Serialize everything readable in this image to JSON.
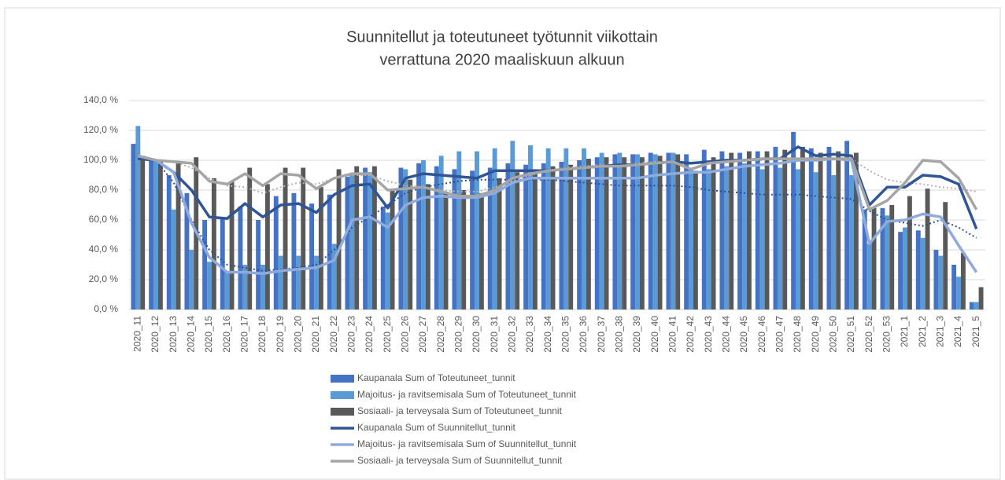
{
  "chart_data": {
    "type": "bar-line",
    "title": [
      "Suunnitellut ja toteutuneet työtunnit viikottain",
      "verrattuna 2020 maaliskuun alkuun"
    ],
    "categories": [
      "2020_11",
      "2020_12",
      "2020_13",
      "2020_14",
      "2020_15",
      "2020_16",
      "2020_17",
      "2020_18",
      "2020_19",
      "2020_20",
      "2020_21",
      "2020_22",
      "2020_23",
      "2020_24",
      "2020_25",
      "2020_26",
      "2020_27",
      "2020_28",
      "2020_29",
      "2020_30",
      "2020_31",
      "2020_32",
      "2020_33",
      "2020_34",
      "2020_35",
      "2020_36",
      "2020_37",
      "2020_38",
      "2020_39",
      "2020_40",
      "2020_41",
      "2020_42",
      "2020_43",
      "2020_44",
      "2020_45",
      "2020_46",
      "2020_47",
      "2020_48",
      "2020_49",
      "2020_50",
      "2020_51",
      "2020_52",
      "2020_53",
      "2021_1",
      "2021_2",
      "2021_3",
      "2021_4",
      "2021_5"
    ],
    "ylim": [
      0,
      140
    ],
    "yticks": [
      {
        "value": 0,
        "label": "0,0 %"
      },
      {
        "value": 20,
        "label": "20,0 %"
      },
      {
        "value": 40,
        "label": "40,0 %"
      },
      {
        "value": 60,
        "label": "60,0 %"
      },
      {
        "value": 80,
        "label": "80,0 %"
      },
      {
        "value": 100,
        "label": "100,0 %"
      },
      {
        "value": 120,
        "label": "120,0 %"
      },
      {
        "value": 140,
        "label": "140,0 %"
      }
    ],
    "grid": true,
    "series": [
      {
        "name": "Kaupanala Sum of Toteutuneet_tunnit",
        "kind": "bar",
        "color": "#4472c4",
        "values": [
          111,
          100,
          90,
          78,
          60,
          62,
          69,
          60,
          76,
          78,
          71,
          77,
          89,
          95,
          69,
          95,
          98,
          96,
          94,
          93,
          95,
          98,
          97,
          98,
          99,
          100,
          102,
          104,
          104,
          105,
          105,
          104,
          107,
          106,
          105,
          106,
          109,
          119,
          108,
          109,
          113,
          67,
          68,
          52,
          53,
          40,
          30,
          5
        ]
      },
      {
        "name": "Majoitus- ja ravitsemisala Sum of Toteutuneet_tunnit",
        "kind": "bar",
        "color": "#5b9bd5",
        "values": [
          123,
          100,
          67,
          40,
          32,
          25,
          30,
          30,
          36,
          36,
          36,
          44,
          90,
          92,
          65,
          94,
          100,
          103,
          106,
          106,
          108,
          113,
          110,
          108,
          108,
          108,
          105,
          105,
          104,
          104,
          105,
          95,
          94,
          96,
          98,
          94,
          95,
          94,
          92,
          90,
          90,
          44,
          63,
          55,
          48,
          36,
          22,
          5
        ]
      },
      {
        "name": "Sosiaali- ja terveysala Sum of Toteutuneet_tunnit",
        "kind": "bar",
        "color": "#595959",
        "values": [
          103,
          100,
          98,
          102,
          88,
          86,
          95,
          84,
          95,
          95,
          82,
          94,
          96,
          96,
          80,
          87,
          84,
          79,
          80,
          78,
          88,
          92,
          94,
          96,
          97,
          101,
          102,
          102,
          102,
          103,
          104,
          93,
          102,
          105,
          106,
          106,
          107,
          109,
          105,
          106,
          105,
          68,
          70,
          76,
          81,
          72,
          38,
          15
        ]
      },
      {
        "name": "Kaupanala Sum of Suunnitellut_tunnit",
        "kind": "line",
        "color": "#2f5597",
        "values": [
          101,
          100,
          92,
          80,
          62,
          61,
          71,
          62,
          70,
          71,
          65,
          77,
          83,
          84,
          68,
          88,
          91,
          90,
          89,
          88,
          93,
          93,
          93,
          93,
          94,
          95,
          96,
          97,
          97,
          98,
          99,
          98,
          99,
          100,
          100,
          101,
          101,
          109,
          103,
          104,
          103,
          70,
          82,
          82,
          90,
          89,
          84,
          54
        ]
      },
      {
        "name": "Majoitus- ja ravitsemisala Sum of Suunnitellut_tunnit",
        "kind": "line",
        "color": "#8faadc",
        "values": [
          103,
          100,
          92,
          58,
          35,
          25,
          25,
          24,
          26,
          27,
          28,
          33,
          60,
          62,
          55,
          70,
          75,
          76,
          75,
          75,
          78,
          85,
          88,
          88,
          88,
          88,
          88,
          88,
          88,
          90,
          91,
          92,
          92,
          94,
          96,
          97,
          98,
          100,
          100,
          101,
          100,
          44,
          59,
          60,
          64,
          62,
          43,
          25
        ]
      },
      {
        "name": "Sosiaali- ja terveysala Sum of Suunnitellut_tunnit",
        "kind": "line",
        "color": "#a5a5a5",
        "values": [
          103,
          100,
          99,
          98,
          86,
          84,
          91,
          83,
          91,
          90,
          81,
          88,
          91,
          91,
          80,
          81,
          82,
          79,
          76,
          76,
          80,
          88,
          91,
          93,
          94,
          95,
          96,
          96,
          97,
          98,
          99,
          94,
          98,
          99,
          100,
          101,
          101,
          101,
          101,
          101,
          101,
          67,
          73,
          85,
          100,
          99,
          88,
          67
        ]
      }
    ],
    "trendlines": [
      {
        "color": "#2f4f8f",
        "values": [
          103,
          100,
          85,
          60,
          40,
          30,
          28,
          26,
          27,
          28,
          30,
          40,
          55,
          62,
          70,
          78,
          82,
          84,
          86,
          87,
          87,
          87,
          87,
          87,
          86,
          85,
          84,
          83,
          83,
          83,
          83,
          82,
          80,
          79,
          78,
          77,
          77,
          77,
          76,
          75,
          74,
          66,
          60,
          58,
          56,
          60,
          55,
          48
        ]
      },
      {
        "color": "#b4b4b4",
        "values": [
          102,
          100,
          99,
          95,
          88,
          83,
          82,
          78,
          82,
          85,
          84,
          88,
          90,
          90,
          86,
          83,
          82,
          80,
          79,
          79,
          82,
          86,
          90,
          93,
          95,
          96,
          97,
          97,
          98,
          99,
          99,
          98,
          98,
          99,
          100,
          100,
          101,
          101,
          101,
          101,
          101,
          93,
          87,
          85,
          84,
          82,
          81,
          79
        ]
      }
    ]
  }
}
